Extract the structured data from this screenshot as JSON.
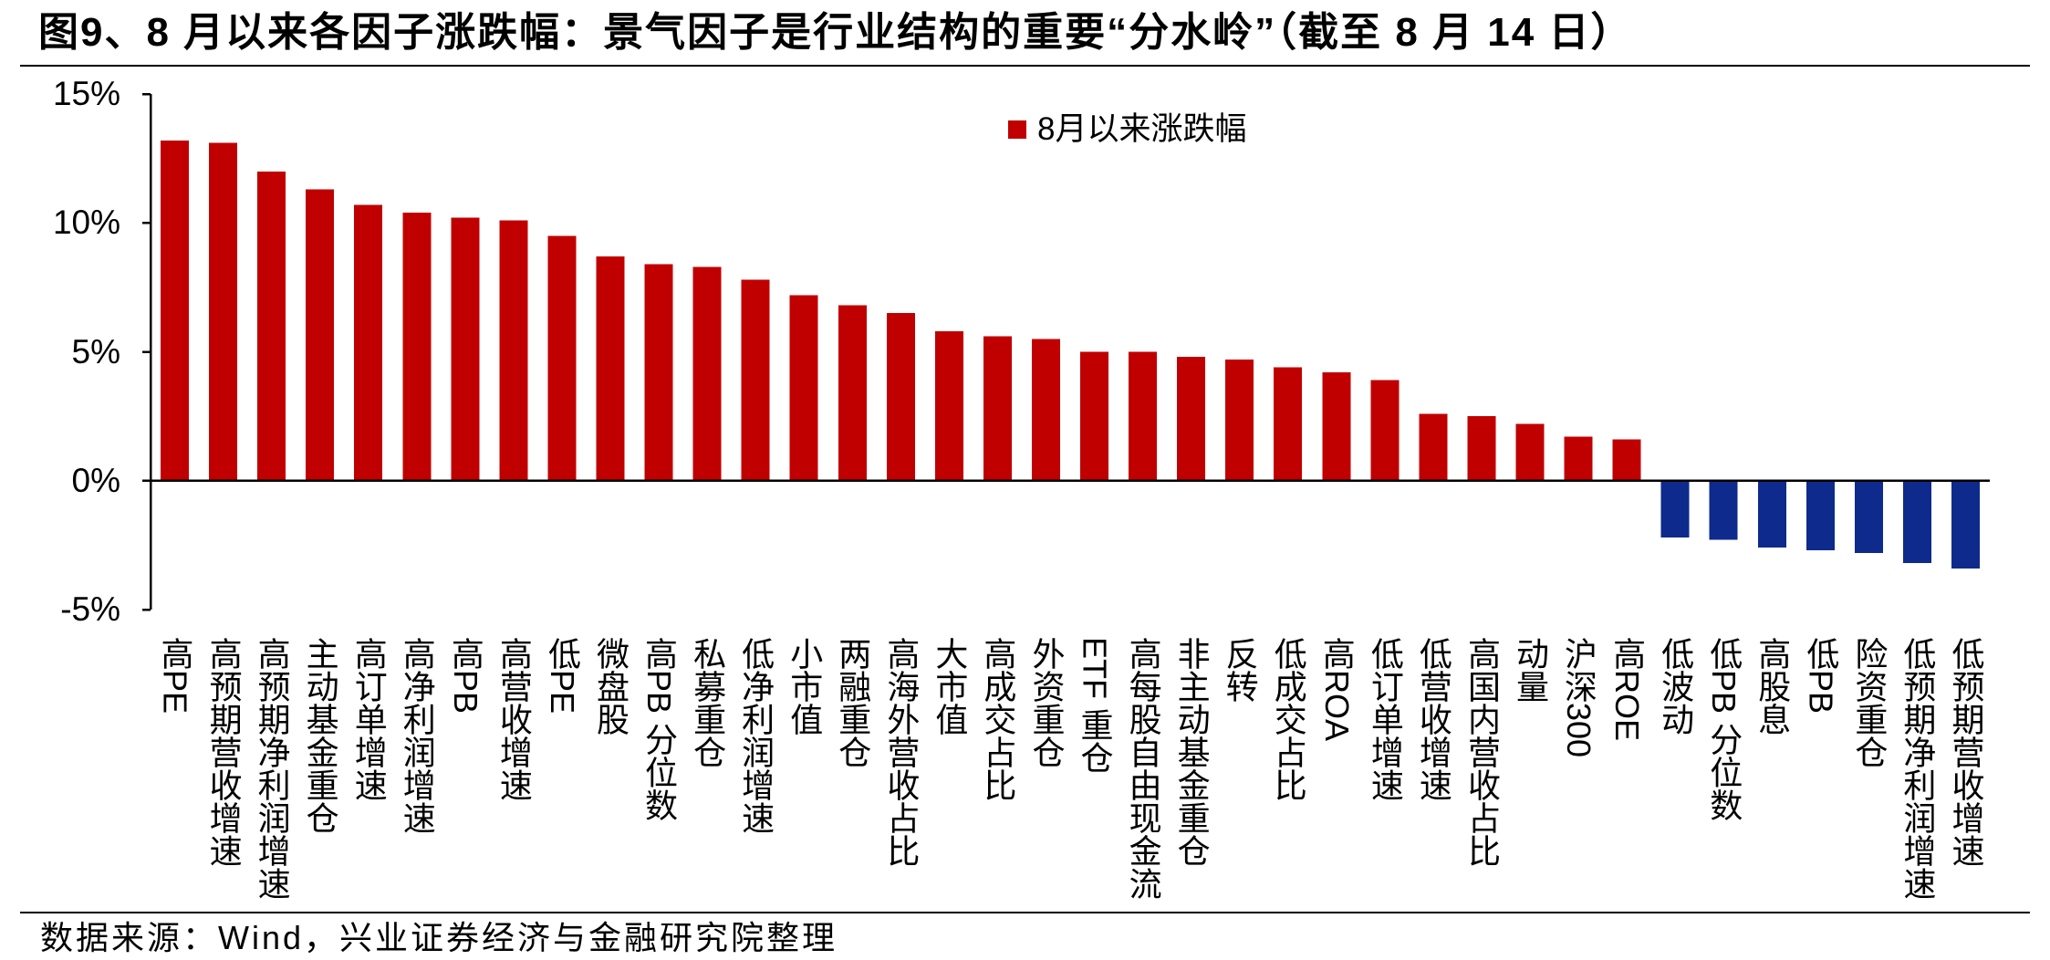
{
  "source": "数据来源：Wind，兴业证券经济与金融研究院整理",
  "chart_data": {
    "type": "bar",
    "title": "图9、8 月以来各因子涨跌幅：景气因子是行业结构的重要“分水岭”（截至 8 月 14 日）",
    "categories": [
      "高PE",
      "高预期营收增速",
      "高预期净利润增速",
      "主动基金重仓",
      "高订单增速",
      "高净利润增速",
      "高PB",
      "高营收增速",
      "低PE",
      "微盘股",
      "高PB 分位数",
      "私募重仓",
      "低净利润增速",
      "小市值",
      "两融重仓",
      "高海外营收占比",
      "大市值",
      "高成交占比",
      "外资重仓",
      "ETF 重仓",
      "高每股自由现金流",
      "非主动基金重仓",
      "反转",
      "低成交占比",
      "高ROA",
      "低订单增速",
      "低营收增速",
      "高国内营收占比",
      "动量",
      "沪深300",
      "高ROE",
      "低波动",
      "低PB 分位数",
      "高股息",
      "低PB",
      "险资重仓",
      "低预期净利润增速",
      "低预期营收增速"
    ],
    "series": [
      {
        "name": "8月以来涨跌幅",
        "values": [
          13.2,
          13.1,
          12.0,
          11.3,
          10.7,
          10.4,
          10.2,
          10.1,
          9.5,
          8.7,
          8.4,
          8.3,
          7.8,
          7.2,
          6.8,
          6.5,
          5.8,
          5.6,
          5.5,
          5.0,
          5.0,
          4.8,
          4.7,
          4.4,
          4.2,
          3.9,
          2.6,
          2.5,
          2.2,
          1.7,
          1.6,
          -2.2,
          -2.3,
          -2.6,
          -2.7,
          -2.8,
          -3.2,
          -3.4
        ]
      }
    ],
    "ylim": [
      -5,
      15
    ],
    "y_ticks": [
      15,
      10,
      5,
      0,
      -5
    ],
    "y_tick_labels": [
      "15%",
      "10%",
      "5%",
      "0%",
      "-5%"
    ],
    "grid": false,
    "legend_position": "top-center",
    "colors": {
      "positive": "#C00000",
      "negative": "#0E2A8C"
    }
  }
}
